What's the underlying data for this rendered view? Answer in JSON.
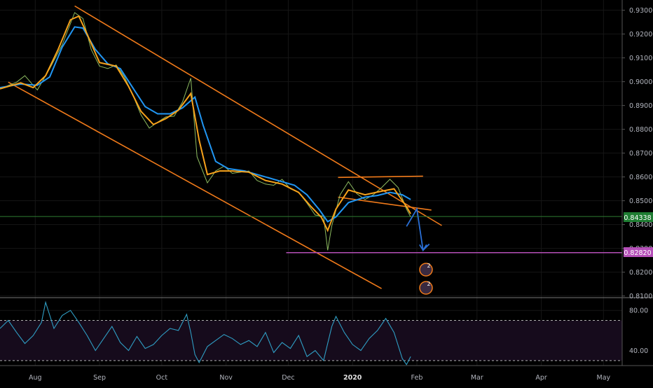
{
  "colors": {
    "background": "#000000",
    "grid": "#161616",
    "axis_text": "#b2b5be",
    "price_line": "#9ccf6a",
    "ema_fast": "#f7a21b",
    "ema_slow": "#2196f3",
    "channel": "#f07a1a",
    "horizontal_level": "#2e7d32",
    "support_level": "#b54fb8",
    "projection_arrow": "#2a6fd6",
    "rsi_line": "#2f9ec4",
    "rsi_band": "#160b1c",
    "rsi_bounds": "#b0b0b0",
    "pane_separator": "#777777"
  },
  "price_axis": {
    "ticks": [
      "0.93000",
      "0.92000",
      "0.91000",
      "0.90000",
      "0.89000",
      "0.88000",
      "0.87000",
      "0.86000",
      "0.85000",
      "0.84000",
      "0.83000",
      "0.82000",
      "0.81000"
    ]
  },
  "rsi_axis": {
    "ticks": [
      "80.00",
      "40.00"
    ]
  },
  "time_axis": {
    "labels": [
      "Aug",
      "Sep",
      "Oct",
      "Nov",
      "Dec",
      "2020",
      "Feb",
      "Mar",
      "Apr",
      "May"
    ]
  },
  "labels": {
    "current_price": "0.84338",
    "support_price": "0.82820",
    "event_badge_1": "2",
    "event_badge_2": "2"
  },
  "chart_data": {
    "type": "line",
    "price_scale": {
      "ylim": [
        0.8093,
        0.9343
      ]
    },
    "rsi_scale": {
      "ylim": [
        25,
        92
      ],
      "upper_band": 70,
      "lower_band": 30
    },
    "x_domain_days": [
      0,
      300
    ],
    "price_series": {
      "name": "",
      "points": [
        [
          0,
          0.897
        ],
        [
          8,
          0.8998
        ],
        [
          12,
          0.9025
        ],
        [
          16,
          0.8985
        ],
        [
          18,
          0.8965
        ],
        [
          24,
          0.9055
        ],
        [
          30,
          0.9155
        ],
        [
          36,
          0.929
        ],
        [
          40,
          0.9265
        ],
        [
          44,
          0.9135
        ],
        [
          48,
          0.9065
        ],
        [
          52,
          0.9055
        ],
        [
          56,
          0.907
        ],
        [
          60,
          0.902
        ],
        [
          64,
          0.8945
        ],
        [
          68,
          0.886
        ],
        [
          72,
          0.8805
        ],
        [
          76,
          0.883
        ],
        [
          80,
          0.8852
        ],
        [
          84,
          0.8855
        ],
        [
          88,
          0.8915
        ],
        [
          92,
          0.9015
        ],
        [
          95,
          0.8685
        ],
        [
          100,
          0.8575
        ],
        [
          104,
          0.8625
        ],
        [
          108,
          0.8645
        ],
        [
          112,
          0.8615
        ],
        [
          116,
          0.862
        ],
        [
          120,
          0.8625
        ],
        [
          124,
          0.8585
        ],
        [
          128,
          0.857
        ],
        [
          132,
          0.8565
        ],
        [
          136,
          0.859
        ],
        [
          140,
          0.855
        ],
        [
          144,
          0.8535
        ],
        [
          148,
          0.849
        ],
        [
          152,
          0.844
        ],
        [
          156,
          0.8435
        ],
        [
          158,
          0.8292
        ],
        [
          160,
          0.8395
        ],
        [
          164,
          0.8525
        ],
        [
          168,
          0.858
        ],
        [
          172,
          0.853
        ],
        [
          176,
          0.8505
        ],
        [
          180,
          0.8525
        ],
        [
          184,
          0.8555
        ],
        [
          188,
          0.859
        ],
        [
          192,
          0.8555
        ],
        [
          196,
          0.8465
        ],
        [
          198,
          0.8432
        ]
      ]
    },
    "ema_fast_series": {
      "name": "",
      "points": [
        [
          0,
          0.897
        ],
        [
          10,
          0.8995
        ],
        [
          16,
          0.8975
        ],
        [
          22,
          0.9025
        ],
        [
          28,
          0.9135
        ],
        [
          34,
          0.926
        ],
        [
          38,
          0.9275
        ],
        [
          42,
          0.92
        ],
        [
          48,
          0.908
        ],
        [
          56,
          0.9065
        ],
        [
          62,
          0.898
        ],
        [
          68,
          0.8875
        ],
        [
          74,
          0.882
        ],
        [
          80,
          0.8845
        ],
        [
          86,
          0.888
        ],
        [
          92,
          0.895
        ],
        [
          96,
          0.8755
        ],
        [
          100,
          0.861
        ],
        [
          106,
          0.8625
        ],
        [
          112,
          0.8625
        ],
        [
          120,
          0.862
        ],
        [
          128,
          0.8585
        ],
        [
          136,
          0.857
        ],
        [
          144,
          0.8535
        ],
        [
          150,
          0.8475
        ],
        [
          155,
          0.843
        ],
        [
          158,
          0.8375
        ],
        [
          162,
          0.8465
        ],
        [
          168,
          0.8545
        ],
        [
          176,
          0.8525
        ],
        [
          184,
          0.854
        ],
        [
          190,
          0.855
        ],
        [
          196,
          0.8475
        ],
        [
          198,
          0.8445
        ]
      ]
    },
    "ema_slow_series": {
      "name": "",
      "points": [
        [
          0,
          0.8975
        ],
        [
          10,
          0.899
        ],
        [
          18,
          0.8985
        ],
        [
          24,
          0.902
        ],
        [
          30,
          0.9145
        ],
        [
          36,
          0.923
        ],
        [
          40,
          0.9225
        ],
        [
          46,
          0.9135
        ],
        [
          52,
          0.9075
        ],
        [
          58,
          0.9055
        ],
        [
          64,
          0.8975
        ],
        [
          70,
          0.8895
        ],
        [
          76,
          0.8865
        ],
        [
          82,
          0.8865
        ],
        [
          88,
          0.889
        ],
        [
          94,
          0.8935
        ],
        [
          98,
          0.8815
        ],
        [
          104,
          0.8665
        ],
        [
          110,
          0.8635
        ],
        [
          118,
          0.8625
        ],
        [
          126,
          0.8605
        ],
        [
          134,
          0.8585
        ],
        [
          142,
          0.8565
        ],
        [
          148,
          0.8525
        ],
        [
          154,
          0.8462
        ],
        [
          158,
          0.8412
        ],
        [
          162,
          0.8432
        ],
        [
          168,
          0.8492
        ],
        [
          176,
          0.8515
        ],
        [
          182,
          0.8522
        ],
        [
          188,
          0.8535
        ],
        [
          194,
          0.8525
        ],
        [
          198,
          0.8505
        ]
      ]
    },
    "rsi_series": {
      "name": "",
      "points": [
        [
          0,
          62
        ],
        [
          4,
          70
        ],
        [
          8,
          58
        ],
        [
          12,
          47
        ],
        [
          16,
          55
        ],
        [
          20,
          68
        ],
        [
          22,
          88
        ],
        [
          26,
          62
        ],
        [
          30,
          75
        ],
        [
          34,
          80
        ],
        [
          38,
          68
        ],
        [
          42,
          55
        ],
        [
          46,
          40
        ],
        [
          50,
          52
        ],
        [
          54,
          64
        ],
        [
          58,
          48
        ],
        [
          62,
          40
        ],
        [
          66,
          54
        ],
        [
          70,
          42
        ],
        [
          74,
          46
        ],
        [
          78,
          55
        ],
        [
          82,
          62
        ],
        [
          86,
          60
        ],
        [
          90,
          76
        ],
        [
          92,
          58
        ],
        [
          94,
          36
        ],
        [
          96,
          28
        ],
        [
          100,
          44
        ],
        [
          104,
          50
        ],
        [
          108,
          56
        ],
        [
          112,
          52
        ],
        [
          116,
          46
        ],
        [
          120,
          50
        ],
        [
          124,
          44
        ],
        [
          128,
          58
        ],
        [
          132,
          38
        ],
        [
          136,
          48
        ],
        [
          140,
          42
        ],
        [
          144,
          55
        ],
        [
          148,
          34
        ],
        [
          152,
          40
        ],
        [
          156,
          30
        ],
        [
          160,
          64
        ],
        [
          162,
          74
        ],
        [
          166,
          58
        ],
        [
          170,
          46
        ],
        [
          174,
          40
        ],
        [
          178,
          52
        ],
        [
          182,
          60
        ],
        [
          186,
          72
        ],
        [
          190,
          58
        ],
        [
          194,
          32
        ],
        [
          196,
          26
        ],
        [
          198,
          34
        ]
      ]
    },
    "channel_upper": [
      [
        36,
        0.9318
      ],
      [
        213,
        0.8396
      ]
    ],
    "channel_lower": [
      [
        4,
        0.8998
      ],
      [
        184,
        0.8131
      ]
    ],
    "wedge_upper": [
      [
        163,
        0.8598
      ],
      [
        204,
        0.8603
      ]
    ],
    "wedge_lower": [
      [
        163,
        0.8515
      ],
      [
        208,
        0.8461
      ]
    ],
    "current_level": 0.84338,
    "support_level": 0.8282,
    "projection_arrow": [
      [
        196,
        0.8392
      ],
      [
        201,
        0.8465
      ],
      [
        204,
        0.8292
      ],
      [
        207,
        0.8318
      ]
    ],
    "event_markers": [
      [
        202,
        0.8232
      ],
      [
        202,
        0.8142
      ]
    ]
  }
}
